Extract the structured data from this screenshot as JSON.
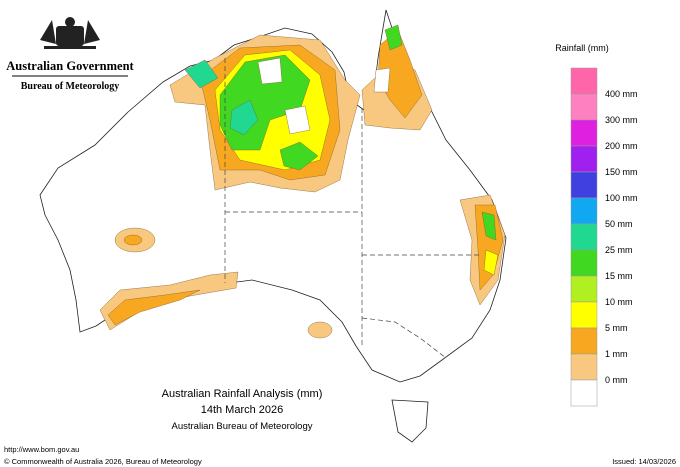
{
  "header": {
    "government": "Australian Government",
    "bureau": "Bureau of Meteorology"
  },
  "legend": {
    "title": "Rainfall (mm)",
    "items": [
      {
        "label": "400 mm",
        "color": "#ff80c0",
        "upper": "#ff66aa"
      },
      {
        "label": "300 mm",
        "color": "#e020e0"
      },
      {
        "label": "200 mm",
        "color": "#a020f0"
      },
      {
        "label": "150 mm",
        "color": "#4040e0"
      },
      {
        "label": "100 mm",
        "color": "#10a8f0"
      },
      {
        "label": "50 mm",
        "color": "#20d890"
      },
      {
        "label": "25 mm",
        "color": "#40d820"
      },
      {
        "label": "15 mm",
        "color": "#b0f020"
      },
      {
        "label": "10 mm",
        "color": "#ffff00"
      },
      {
        "label": "5 mm",
        "color": "#f8a820"
      },
      {
        "label": "1 mm",
        "color": "#f8c880"
      },
      {
        "label": "0 mm",
        "color": "#ffffff"
      }
    ]
  },
  "map_title": {
    "line1": "Australian Rainfall Analysis (mm)",
    "line2": "14th March 2026",
    "line3": "Australian Bureau of Meteorology"
  },
  "footer": {
    "url": "http://www.bom.gov.au",
    "copyright": "© Commonwealth of Australia 2026, Bureau of Meteorology",
    "issued": "Issued: 14/03/2026"
  }
}
